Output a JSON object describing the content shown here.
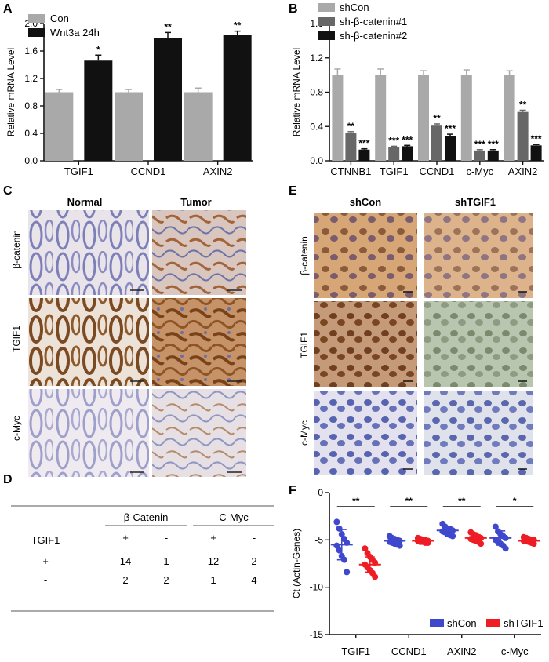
{
  "panels": {
    "A": "A",
    "B": "B",
    "C": "C",
    "D": "D",
    "E": "E",
    "F": "F"
  },
  "colors": {
    "gray": "#a9a9a9",
    "darkgray": "#676767",
    "black": "#111111",
    "blue": "#3f48cc",
    "red": "#ee1c24",
    "ihc_brown": "#9a5a2a",
    "ihc_blue": "#8a94c8"
  },
  "chart_data": [
    {
      "panel": "A",
      "type": "bar",
      "ylabel": "Relative mRNA Level",
      "ylim": [
        0,
        2.0
      ],
      "yticks": [
        "0.0",
        "0.4",
        "0.8",
        "1.2",
        "1.6",
        "2.0"
      ],
      "categories": [
        "TGIF1",
        "CCND1",
        "AXIN2"
      ],
      "series": [
        {
          "name": "Con",
          "color": "#a9a9a9",
          "values": [
            1.0,
            1.0,
            1.0
          ],
          "err": [
            0.04,
            0.04,
            0.06
          ]
        },
        {
          "name": "Wnt3a 24h",
          "color": "#111111",
          "values": [
            1.46,
            1.79,
            1.83
          ],
          "err": [
            0.08,
            0.08,
            0.06
          ]
        }
      ],
      "annotations": [
        {
          "category": 0,
          "series": 1,
          "text": "*"
        },
        {
          "category": 1,
          "series": 1,
          "text": "**"
        },
        {
          "category": 2,
          "series": 1,
          "text": "**"
        }
      ],
      "legend": "top-left"
    },
    {
      "panel": "B",
      "type": "bar",
      "ylabel": "Relative mRNA Level",
      "ylim": [
        0,
        1.6
      ],
      "yticks": [
        "0.0",
        "0.4",
        "0.8",
        "1.2",
        "1.6"
      ],
      "categories": [
        "CTNNB1",
        "TGIF1",
        "CCND1",
        "c-Myc",
        "AXIN2"
      ],
      "series": [
        {
          "name": "shCon",
          "color": "#a9a9a9",
          "values": [
            1.0,
            1.0,
            1.0,
            1.0,
            1.0
          ],
          "err": [
            0.07,
            0.07,
            0.05,
            0.06,
            0.05
          ]
        },
        {
          "name": "sh-β-catenin#1",
          "color": "#676767",
          "values": [
            0.32,
            0.16,
            0.41,
            0.12,
            0.57
          ],
          "err": [
            0.02,
            0.01,
            0.02,
            0.01,
            0.02
          ]
        },
        {
          "name": "sh-β-catenin#2",
          "color": "#111111",
          "values": [
            0.13,
            0.17,
            0.29,
            0.12,
            0.18
          ],
          "err": [
            0.01,
            0.01,
            0.02,
            0.01,
            0.01
          ]
        }
      ],
      "annotations": [
        {
          "category": 0,
          "series": 1,
          "text": "**"
        },
        {
          "category": 0,
          "series": 2,
          "text": "***"
        },
        {
          "category": 1,
          "series": 1,
          "text": "***"
        },
        {
          "category": 1,
          "series": 2,
          "text": "***"
        },
        {
          "category": 2,
          "series": 1,
          "text": "**"
        },
        {
          "category": 2,
          "series": 2,
          "text": "***"
        },
        {
          "category": 3,
          "series": 1,
          "text": "***"
        },
        {
          "category": 3,
          "series": 2,
          "text": "***"
        },
        {
          "category": 4,
          "series": 1,
          "text": "**"
        },
        {
          "category": 4,
          "series": 2,
          "text": "***"
        }
      ],
      "legend": "top-left"
    },
    {
      "panel": "F",
      "type": "scatter",
      "ylabel": "Ct (Actin-Genes)",
      "ylim": [
        -15,
        0
      ],
      "yticks": [
        "0",
        "-5",
        "-10",
        "-15"
      ],
      "categories": [
        "TGIF1",
        "CCND1",
        "AXIN2",
        "c-Myc"
      ],
      "series": [
        {
          "name": "shCon",
          "color": "#3f48cc",
          "marker": "circle",
          "points": [
            [
              -3.1,
              -3.8,
              -4.4,
              -4.9,
              -5.3,
              -5.6,
              -6.1,
              -6.7,
              -7.1,
              -8.4
            ],
            [
              -4.6,
              -4.8,
              -4.9,
              -5.0,
              -5.1,
              -5.2,
              -5.3,
              -5.4,
              -5.5,
              -5.6
            ],
            [
              -3.3,
              -3.6,
              -3.8,
              -3.9,
              -4.0,
              -4.1,
              -4.2,
              -4.4,
              -4.5,
              -4.6
            ],
            [
              -3.6,
              -4.1,
              -4.4,
              -4.6,
              -4.8,
              -5.0,
              -5.2,
              -5.4,
              -5.6,
              -5.9
            ]
          ],
          "mean": [
            -5.5,
            -5.1,
            -4.0,
            -4.8
          ],
          "sd": [
            1.6,
            0.35,
            0.4,
            0.75
          ]
        },
        {
          "name": "shTGIF1",
          "color": "#ee1c24",
          "marker": "circle",
          "points": [
            [
              -5.9,
              -6.4,
              -6.8,
              -7.1,
              -7.4,
              -7.6,
              -7.9,
              -8.2,
              -8.5,
              -8.9
            ],
            [
              -4.8,
              -4.9,
              -5.0,
              -5.0,
              -5.1,
              -5.1,
              -5.2,
              -5.2,
              -5.3,
              -5.3
            ],
            [
              -4.2,
              -4.4,
              -4.5,
              -4.7,
              -4.8,
              -4.9,
              -5.0,
              -5.1,
              -5.2,
              -5.4
            ],
            [
              -4.7,
              -4.8,
              -4.9,
              -5.0,
              -5.0,
              -5.1,
              -5.1,
              -5.2,
              -5.3,
              -5.4
            ]
          ],
          "mean": [
            -7.6,
            -5.1,
            -4.8,
            -5.1
          ],
          "sd": [
            0.8,
            0.2,
            0.35,
            0.25
          ]
        }
      ],
      "significance": [
        "**",
        "**",
        "**",
        "*"
      ],
      "legend": "bottom-right"
    }
  ],
  "ihc_c": {
    "columns": [
      "Normal",
      "Tumor"
    ],
    "rows": [
      "β-catenin",
      "TGIF1",
      "c-Myc"
    ]
  },
  "ihc_e": {
    "columns": [
      "shCon",
      "shTGIF1"
    ],
    "rows": [
      "β-catenin",
      "TGIF1",
      "c-Myc"
    ]
  },
  "table_d": {
    "row_header": "TGIF1",
    "groups": [
      "β-Catenin",
      "C-Myc"
    ],
    "subheaders": [
      "+",
      "-",
      "+",
      "-"
    ],
    "rows": [
      {
        "label": "+",
        "values": [
          "14",
          "1",
          "12",
          "2"
        ]
      },
      {
        "label": "-",
        "values": [
          "2",
          "2",
          "1",
          "4"
        ]
      }
    ]
  }
}
